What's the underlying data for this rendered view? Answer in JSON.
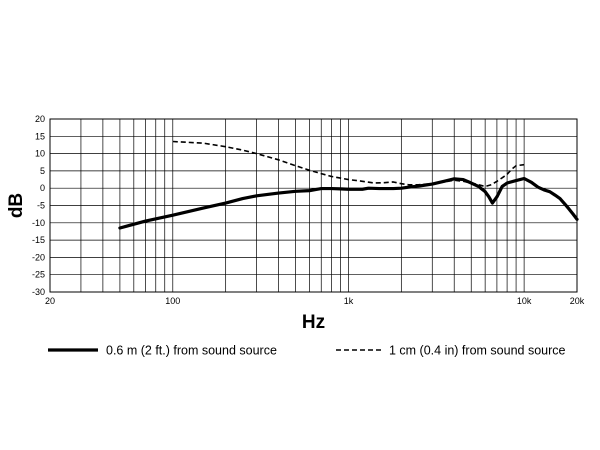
{
  "chart_data": {
    "type": "line",
    "title": "",
    "xlabel": "Hz",
    "ylabel": "dB",
    "x_scale": "log",
    "xlim": [
      20,
      20000
    ],
    "ylim": [
      -30,
      20
    ],
    "grid": true,
    "legend_position": "bottom",
    "x_ticks": [
      {
        "value": 20,
        "label": "20"
      },
      {
        "value": 100,
        "label": "100"
      },
      {
        "value": 1000,
        "label": "1k"
      },
      {
        "value": 10000,
        "label": "10k"
      },
      {
        "value": 20000,
        "label": "20k"
      }
    ],
    "y_ticks": [
      20,
      15,
      10,
      5,
      0,
      -5,
      -10,
      -15,
      -20,
      -25,
      -30
    ],
    "series": [
      {
        "name": "0.6 m (2 ft.) from sound source",
        "style": "solid",
        "color": "#000000",
        "points": [
          [
            50,
            -11.5
          ],
          [
            70,
            -9.5
          ],
          [
            100,
            -7.8
          ],
          [
            150,
            -5.7
          ],
          [
            200,
            -4.3
          ],
          [
            250,
            -3.0
          ],
          [
            300,
            -2.2
          ],
          [
            400,
            -1.4
          ],
          [
            500,
            -0.9
          ],
          [
            600,
            -0.7
          ],
          [
            650,
            -0.4
          ],
          [
            700,
            -0.1
          ],
          [
            800,
            -0.1
          ],
          [
            900,
            -0.2
          ],
          [
            1000,
            -0.3
          ],
          [
            1200,
            -0.3
          ],
          [
            1300,
            0.0
          ],
          [
            1500,
            -0.1
          ],
          [
            1800,
            -0.1
          ],
          [
            2000,
            0.0
          ],
          [
            2200,
            0.3
          ],
          [
            2500,
            0.6
          ],
          [
            3000,
            1.2
          ],
          [
            3500,
            2.0
          ],
          [
            4000,
            2.7
          ],
          [
            4500,
            2.5
          ],
          [
            5000,
            1.5
          ],
          [
            5500,
            0.5
          ],
          [
            6000,
            -1.0
          ],
          [
            6300,
            -2.5
          ],
          [
            6600,
            -4.3
          ],
          [
            7000,
            -2.5
          ],
          [
            7500,
            0.5
          ],
          [
            8000,
            1.5
          ],
          [
            9000,
            2.2
          ],
          [
            10000,
            2.8
          ],
          [
            11000,
            1.7
          ],
          [
            12000,
            0.3
          ],
          [
            13000,
            -0.5
          ],
          [
            14000,
            -1.0
          ],
          [
            15000,
            -2.0
          ],
          [
            16000,
            -3.0
          ],
          [
            17000,
            -4.5
          ],
          [
            18000,
            -6.0
          ],
          [
            19000,
            -7.5
          ],
          [
            20000,
            -9.0
          ]
        ]
      },
      {
        "name": "1 cm (0.4 in) from sound source",
        "style": "dashed",
        "color": "#000000",
        "points": [
          [
            100,
            13.5
          ],
          [
            150,
            13.0
          ],
          [
            200,
            12.0
          ],
          [
            250,
            11.0
          ],
          [
            300,
            10.0
          ],
          [
            400,
            8.2
          ],
          [
            500,
            6.5
          ],
          [
            600,
            5.2
          ],
          [
            700,
            4.2
          ],
          [
            800,
            3.4
          ],
          [
            1000,
            2.5
          ],
          [
            1200,
            2.0
          ],
          [
            1400,
            1.5
          ],
          [
            1600,
            1.6
          ],
          [
            1800,
            1.8
          ],
          [
            2000,
            1.3
          ],
          [
            2200,
            1.0
          ],
          [
            2500,
            1.0
          ],
          [
            3000,
            1.3
          ],
          [
            3500,
            1.8
          ],
          [
            4000,
            2.3
          ],
          [
            4500,
            2.0
          ],
          [
            5000,
            1.5
          ],
          [
            5500,
            1.0
          ],
          [
            6000,
            0.5
          ],
          [
            6500,
            1.0
          ],
          [
            7000,
            2.0
          ],
          [
            7500,
            3.0
          ],
          [
            8000,
            4.0
          ],
          [
            8500,
            5.5
          ],
          [
            9000,
            6.5
          ],
          [
            10000,
            6.8
          ]
        ]
      }
    ]
  }
}
